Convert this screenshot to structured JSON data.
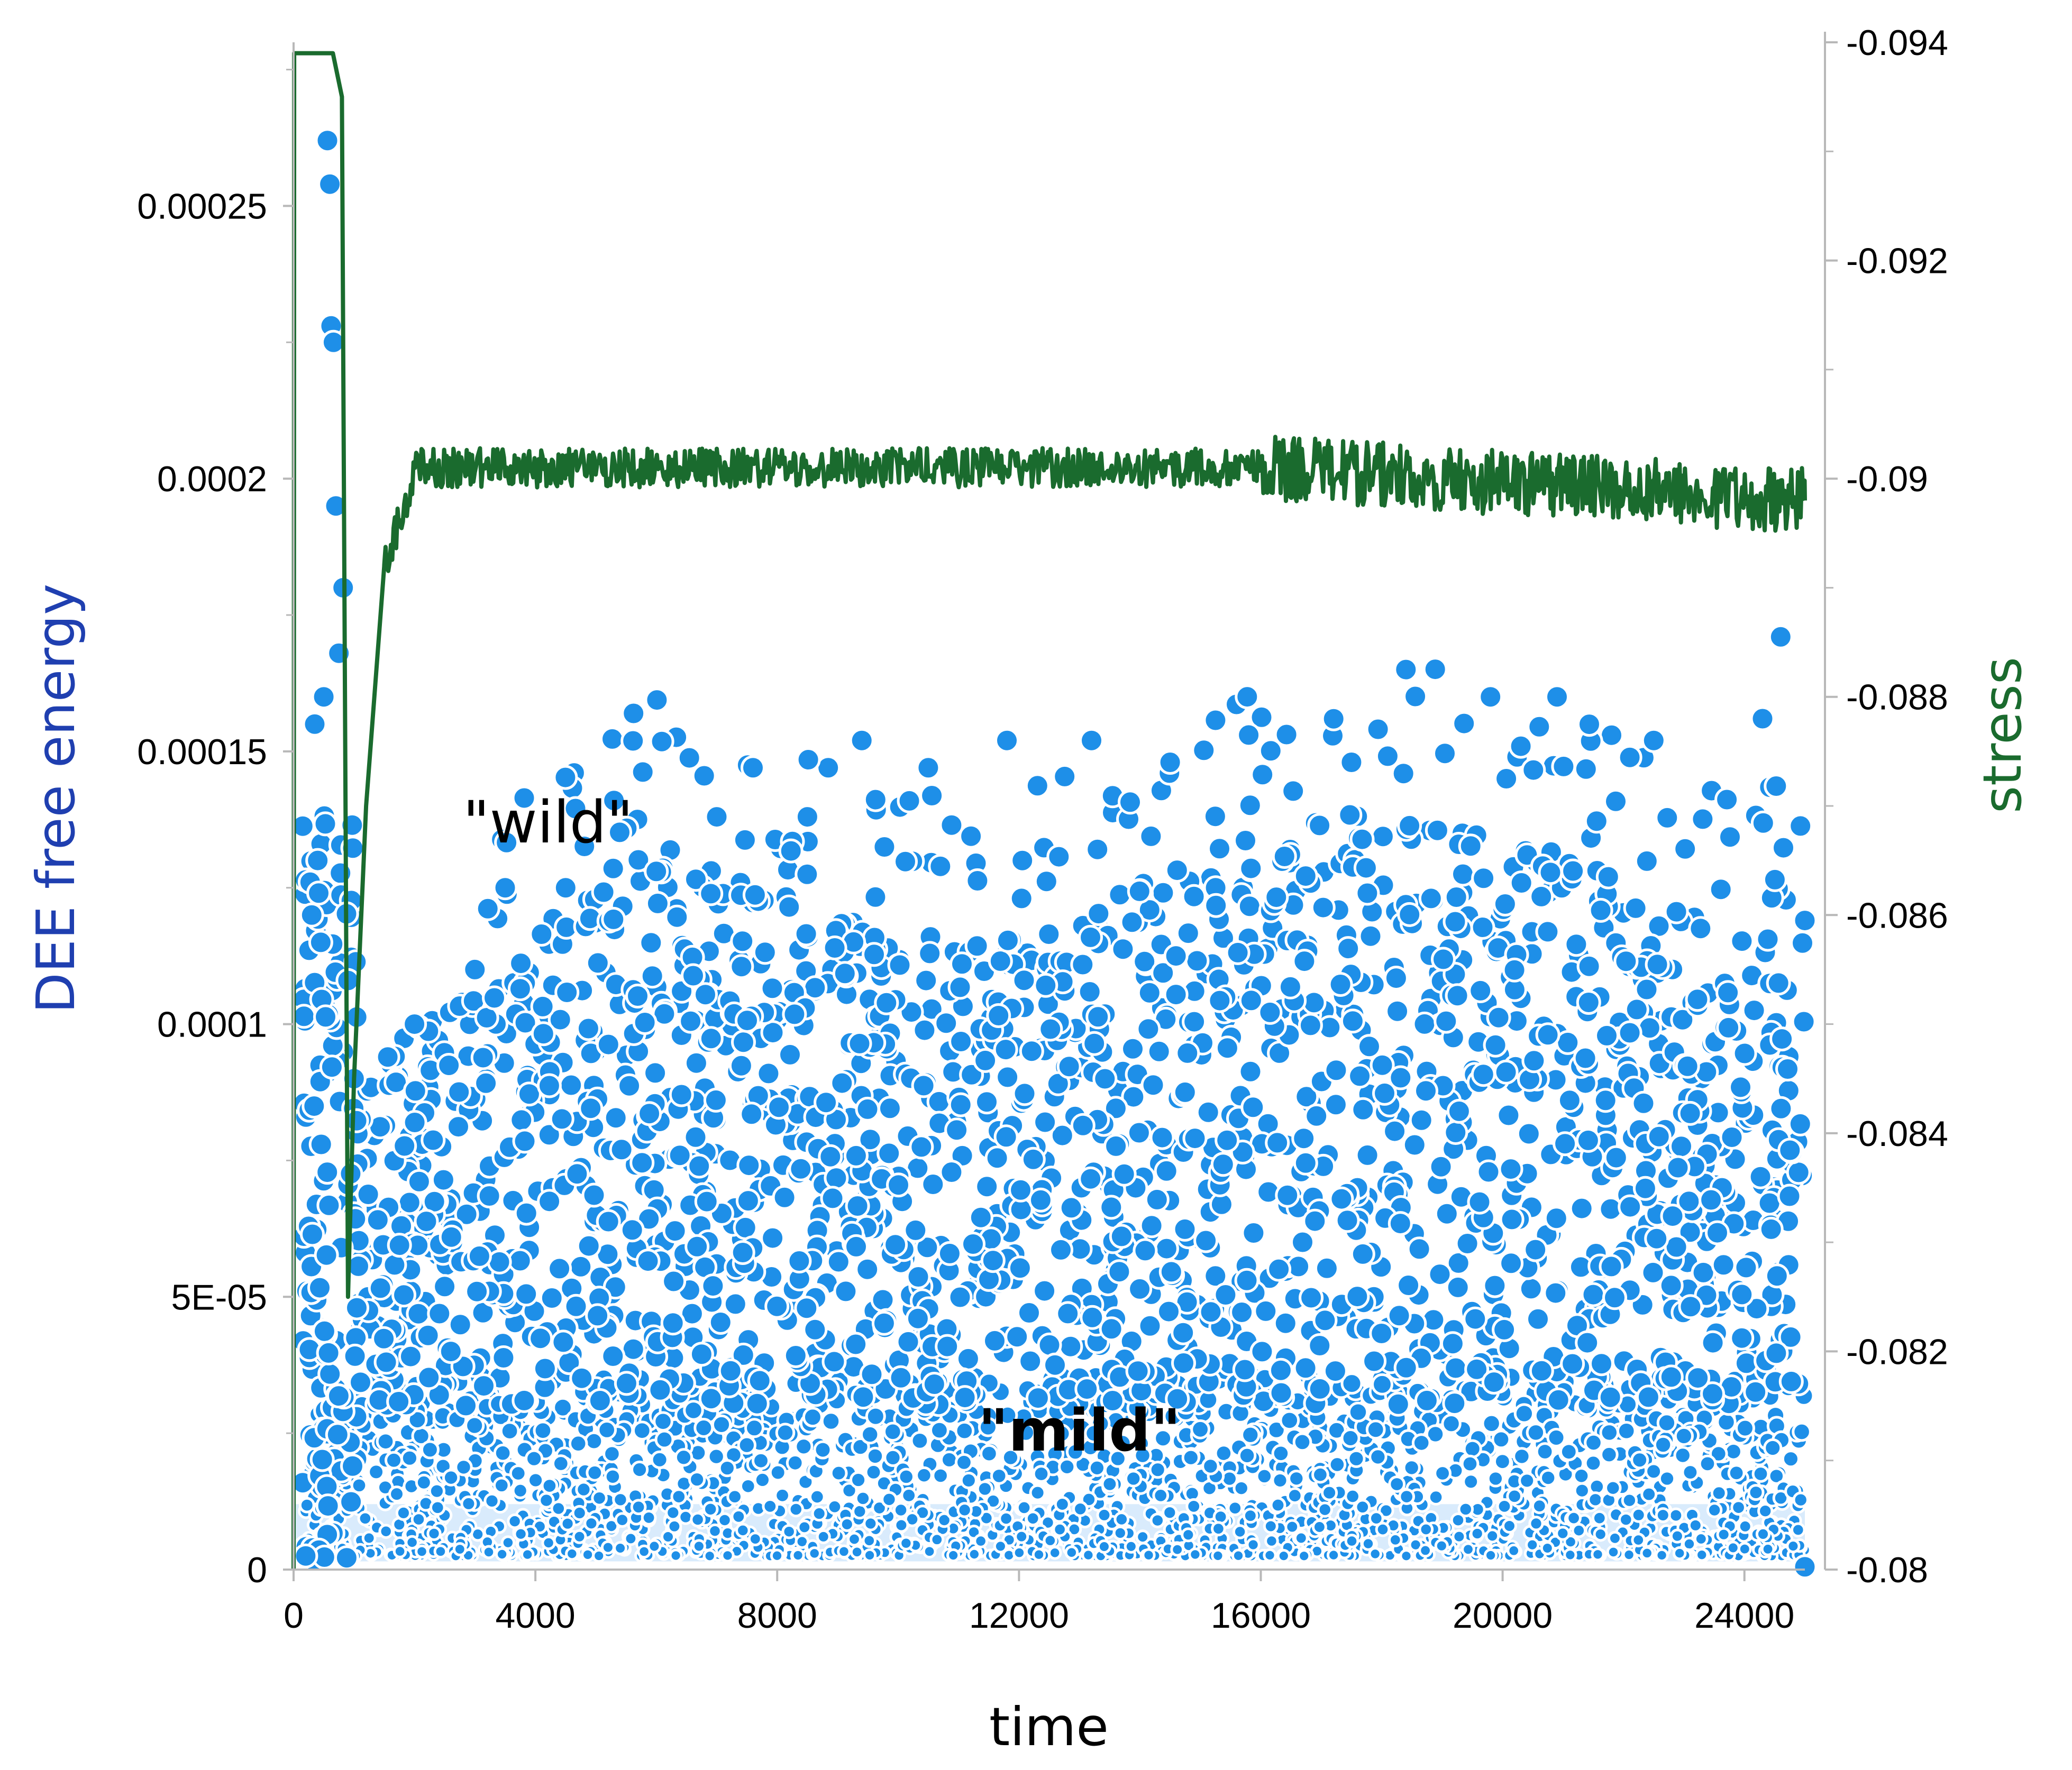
{
  "chart_data": {
    "type": "scatter",
    "xlabel": "time",
    "ylabel_left": "DEE free energy",
    "ylabel_right": "stress",
    "x_range": [
      0,
      25000
    ],
    "x_ticks": [
      "0",
      "4000",
      "8000",
      "12000",
      "16000",
      "20000",
      "24000"
    ],
    "x_tick_values": [
      0,
      4000,
      8000,
      12000,
      16000,
      20000,
      24000
    ],
    "y_left_range": [
      0,
      0.00028
    ],
    "y_left_ticks": [
      "0",
      "5E-05",
      "0.0001",
      "0.00015",
      "0.0002",
      "0.00025"
    ],
    "y_left_tick_values": [
      0,
      5e-05,
      0.0001,
      0.00015,
      0.0002,
      0.00025
    ],
    "y_right_range": [
      -0.08,
      -0.094
    ],
    "y_right_ticks": [
      "-0.08",
      "-0.082",
      "-0.084",
      "-0.086",
      "-0.088",
      "-0.09",
      "-0.092",
      "-0.094"
    ],
    "y_right_tick_values": [
      -0.08,
      -0.082,
      -0.084,
      -0.086,
      -0.088,
      -0.09,
      -0.092,
      -0.094
    ],
    "grid": false,
    "annotations": [
      {
        "text": "\"wild\"",
        "x": 2800,
        "y": 0.000137
      },
      {
        "text": "\"mild\"",
        "x": 13000,
        "y": 2.55e-05
      }
    ],
    "series": [
      {
        "axis": "left",
        "color": "#1e8fe8",
        "marker": "circle",
        "points_sampled": [
          [
            200,
            2.5e-06
          ],
          [
            300,
            0.00012
          ],
          [
            350,
            0.000155
          ],
          [
            400,
            0.00013
          ],
          [
            450,
            0.000115
          ],
          [
            500,
            0.00016
          ],
          [
            560,
            0.000262
          ],
          [
            600,
            0.000254
          ],
          [
            620,
            0.000228
          ],
          [
            660,
            0.000225
          ],
          [
            700,
            0.000195
          ],
          [
            750,
            0.000168
          ],
          [
            820,
            0.00018
          ],
          [
            900,
            0.000108
          ],
          [
            1000,
            9e-05
          ],
          [
            2000,
            0.0001
          ],
          [
            3000,
            0.00011
          ],
          [
            3500,
            0.000125
          ],
          [
            4500,
            0.000125
          ],
          [
            5300,
            0.000141
          ],
          [
            6000,
            0.000128
          ],
          [
            7000,
            0.000138
          ],
          [
            7600,
            0.000147
          ],
          [
            8500,
            0.000138
          ],
          [
            9400,
            0.000152
          ],
          [
            10500,
            0.000147
          ],
          [
            11800,
            0.000152
          ],
          [
            13200,
            0.000152
          ],
          [
            14500,
            0.000148
          ],
          [
            15800,
            0.000153
          ],
          [
            17500,
            0.000148
          ],
          [
            18400,
            0.000165
          ],
          [
            19800,
            0.00016
          ],
          [
            20900,
            0.00016
          ],
          [
            22500,
            0.000152
          ],
          [
            24300,
            0.000156
          ],
          [
            24600,
            0.000171
          ],
          [
            25000,
            0.000119
          ],
          [
            25000,
            5e-07
          ]
        ],
        "bands": [
          {
            "x_start": 1000,
            "x_end": 25000,
            "y_low": 0.0,
            "y_high": 3.5e-05,
            "density": "dense"
          },
          {
            "x_start": 1000,
            "x_end": 25000,
            "y_low": 3.5e-05,
            "y_high": 7.5e-05,
            "density": "medium"
          },
          {
            "x_start": 1500,
            "x_end": 25000,
            "y_low": 7.5e-05,
            "y_high": 0.00013,
            "density": "medium"
          }
        ]
      },
      {
        "axis": "right",
        "color": "#1a6b2e",
        "marker": "line",
        "points_sampled": [
          [
            0,
            -0.08
          ],
          [
            10,
            -0.0939
          ],
          [
            650,
            -0.0939
          ],
          [
            800,
            -0.0935
          ],
          [
            900,
            -0.0825
          ],
          [
            1000,
            -0.0845
          ],
          [
            1200,
            -0.087
          ],
          [
            1500,
            -0.0892
          ],
          [
            2000,
            -0.09
          ],
          [
            4000,
            -0.0901
          ],
          [
            8000,
            -0.0901
          ],
          [
            12000,
            -0.09
          ],
          [
            16000,
            -0.09
          ],
          [
            20000,
            -0.0899
          ],
          [
            24000,
            -0.0899
          ],
          [
            25000,
            -0.0898
          ]
        ]
      }
    ]
  }
}
